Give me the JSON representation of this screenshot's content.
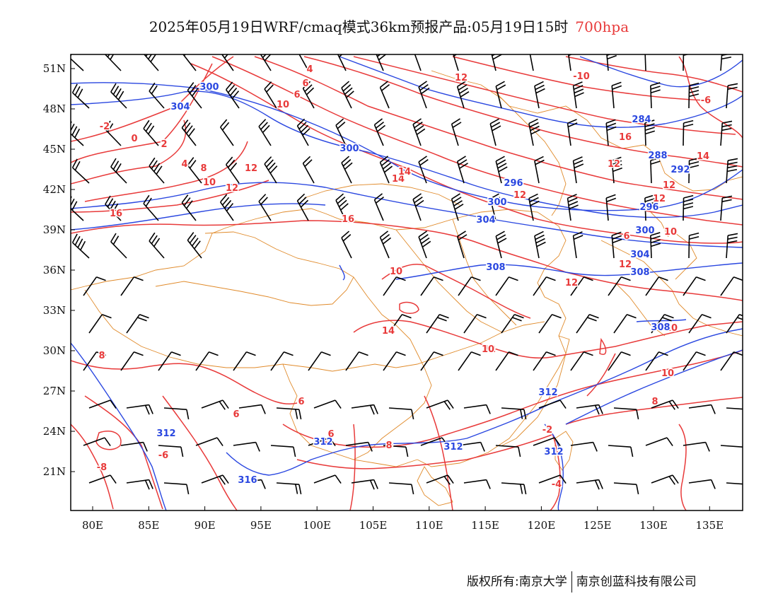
{
  "title": {
    "main": "2025年05月19日WRF/cmaq模式36km预报产品:05月19日15时",
    "level": "700hpa"
  },
  "axes": {
    "lon_labels": [
      "80E",
      "85E",
      "90E",
      "95E",
      "100E",
      "105E",
      "110E",
      "115E",
      "120E",
      "125E",
      "130E",
      "135E"
    ],
    "lat_labels": [
      "51N",
      "48N",
      "45N",
      "42N",
      "39N",
      "36N",
      "33N",
      "30N",
      "27N",
      "24N",
      "21N"
    ]
  },
  "height_contours": {
    "color": "#2a47e0",
    "labels": [
      "300",
      "304",
      "300",
      "296",
      "300",
      "304",
      "308",
      "284",
      "288",
      "292",
      "296",
      "300",
      "304",
      "308",
      "308",
      "312",
      "312",
      "312",
      "312",
      "316",
      "312"
    ]
  },
  "temperature_contours": {
    "color": "#e83a3a",
    "labels": [
      "4",
      "6",
      "6",
      "8",
      "10",
      "-10",
      "-6",
      "-2",
      "0",
      "2",
      "4",
      "8",
      "12",
      "10",
      "12",
      "14",
      "16",
      "16",
      "10",
      "12",
      "14",
      "12",
      "10",
      "8",
      "6",
      "4",
      "2",
      "0",
      "-2",
      "-4",
      "-8",
      "-6",
      "8",
      "10",
      "14",
      "16",
      "12",
      "12",
      "12",
      "12",
      "10",
      "6",
      "12",
      "12",
      "14",
      "12",
      "10",
      "8",
      "6",
      "6"
    ]
  },
  "colors": {
    "border_orange": "#e08a2a",
    "wind_barb": "#000000",
    "frame": "#000000"
  },
  "credit": {
    "left": "版权所有:南京大学",
    "right": "南京创蓝科技有限公司"
  }
}
